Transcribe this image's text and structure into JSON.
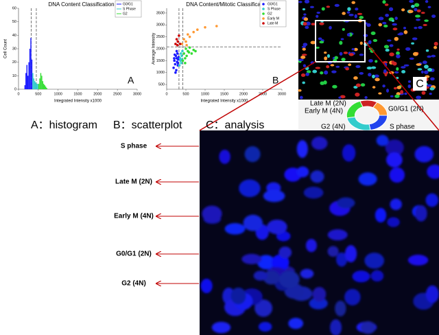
{
  "chart_data": [
    {
      "type": "histogram",
      "title": "DNA Content Classification",
      "x_label": "Integrated Intensity x1000",
      "y_label": "Cell Count",
      "panel_label": "A",
      "bins": [
        100,
        125,
        150,
        175,
        200,
        225,
        250,
        275,
        300,
        325,
        350,
        375,
        400,
        425,
        450,
        475,
        500,
        525,
        550,
        575,
        600,
        625,
        650,
        675,
        700,
        725
      ],
      "series": [
        {
          "name": "G0/G1",
          "color": "#1a1aff",
          "values": [
            0,
            0,
            3,
            12,
            18,
            10,
            20,
            30,
            38,
            22,
            0,
            0,
            0,
            0,
            0,
            0,
            0,
            0,
            0,
            0,
            0,
            0,
            0,
            0,
            0
          ]
        },
        {
          "name": "S Phase",
          "color": "#33cccc",
          "values": [
            0,
            0,
            0,
            0,
            0,
            0,
            0,
            0,
            0,
            0,
            12,
            8,
            6,
            5,
            4,
            4,
            0,
            0,
            0,
            0,
            0,
            0,
            0,
            0,
            0
          ]
        },
        {
          "name": "G2",
          "color": "#33dd33",
          "values": [
            0,
            0,
            0,
            0,
            0,
            0,
            0,
            0,
            0,
            0,
            0,
            0,
            0,
            0,
            0,
            0,
            4,
            8,
            12,
            10,
            6,
            4,
            3,
            2,
            1
          ]
        }
      ],
      "vlines": [
        320,
        450
      ],
      "xlim": [
        0,
        3000
      ],
      "xticks": [
        0,
        500,
        1000,
        1500,
        2000,
        2500,
        3000
      ],
      "ylim": [
        0,
        60
      ],
      "yticks": [
        0,
        10,
        20,
        30,
        40,
        50,
        60
      ],
      "legend": "upper right"
    },
    {
      "type": "scatter",
      "title": "DNA Content/Mitotic Classification",
      "x_label": "Integrated Intensity x1000",
      "y_label": "Average Intensity",
      "panel_label": "B",
      "series": [
        {
          "name": "G0/G1",
          "color": "#1a1aff",
          "x": [
            180,
            200,
            220,
            240,
            250,
            260,
            270,
            280,
            290,
            300,
            310,
            230,
            210,
            260,
            290,
            195
          ],
          "values": [
            1200,
            1500,
            1350,
            1700,
            1100,
            1600,
            1450,
            1800,
            1300,
            1550,
            1650,
            1000,
            1750,
            1900,
            1400,
            1600
          ]
        },
        {
          "name": "S Phase",
          "color": "#33cccc",
          "x": [
            330,
            350,
            360,
            370,
            380,
            390,
            400,
            410
          ],
          "values": [
            1300,
            1600,
            1500,
            1800,
            1400,
            1700,
            1550,
            1900
          ]
        },
        {
          "name": "G2",
          "color": "#33dd33",
          "x": [
            420,
            450,
            480,
            500,
            520,
            550,
            580,
            600,
            650,
            700,
            750,
            480
          ],
          "values": [
            1500,
            1800,
            1600,
            2000,
            1700,
            1900,
            1850,
            2050,
            1800,
            1950,
            1900,
            1400
          ]
        },
        {
          "name": "Early M",
          "color": "#ff9933",
          "x": [
            400,
            450,
            500,
            550,
            600,
            700,
            800,
            1000,
            1300,
            520
          ],
          "values": [
            2200,
            2400,
            2300,
            2600,
            2500,
            2700,
            2800,
            2900,
            2950,
            2150
          ]
        },
        {
          "name": "Late M",
          "color": "#cc0000",
          "x": [
            230,
            260,
            290,
            320,
            350,
            280
          ],
          "values": [
            2200,
            2400,
            2300,
            2550,
            2200,
            2150
          ]
        }
      ],
      "vlines": [
        320,
        420
      ],
      "hlines": [
        2080
      ],
      "xlim": [
        0,
        3000
      ],
      "xticks": [
        0,
        500,
        1000,
        1500,
        2000,
        2500,
        3000
      ],
      "ylim": [
        300,
        3700
      ],
      "yticks": [
        500,
        1000,
        1500,
        2000,
        2500,
        3000,
        3500
      ],
      "legend": "upper right"
    }
  ],
  "captions": [
    "A：histogram",
    "B：scatterplot",
    "C：analysis"
  ],
  "image_c": {
    "label": "C",
    "cycle_labels": [
      "Late M (2N)",
      "Early M (4N)",
      "G0/G1 (2N)",
      "G2 (4N)",
      "S phase"
    ]
  },
  "annotations": [
    "S phase",
    "Late M (2N)",
    "Early M (4N)",
    "G0/G1 (2N)",
    "G2 (4N)"
  ]
}
